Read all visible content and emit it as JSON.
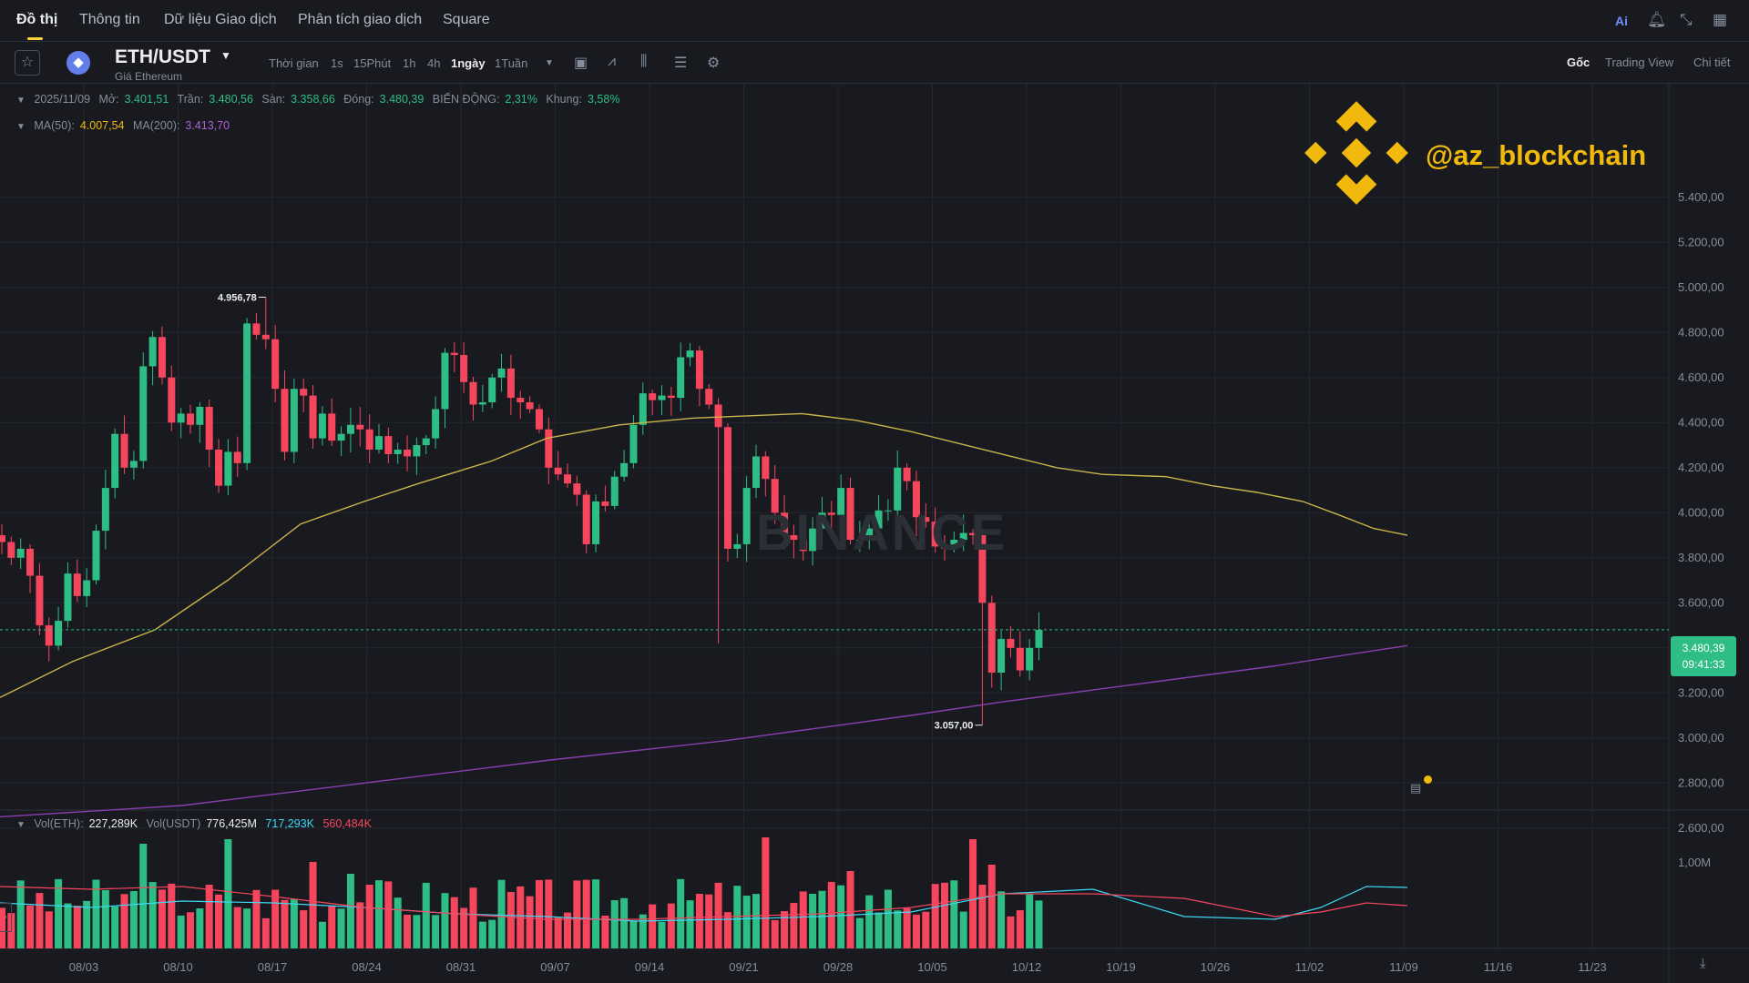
{
  "nav": {
    "tabs": [
      "Đồ thị",
      "Thông tin",
      "Dữ liệu Giao dịch",
      "Phân tích giao dịch",
      "Square"
    ],
    "ai_label": "Ai"
  },
  "toolbar": {
    "pair": "ETH/USDT",
    "subtitle": "Giá Ethereum",
    "time_label": "Thời gian",
    "timeframes": [
      "1s",
      "15Phút",
      "1h",
      "4h",
      "1ngày",
      "1Tuần"
    ],
    "active_timeframe": "1ngày",
    "views": [
      "Gốc",
      "Trading View",
      "Chi tiết"
    ],
    "active_view": "Gốc"
  },
  "ohlc": {
    "date": "2025/11/09",
    "open_label": "Mở:",
    "open": "3.401,51",
    "high_label": "Trần:",
    "high": "3.480,56",
    "low_label": "Sàn:",
    "low": "3.358,66",
    "close_label": "Đóng:",
    "close": "3.480,39",
    "change_label": "BIẾN ĐỘNG:",
    "change": "2,31%",
    "range_label": "Khung:",
    "range": "3,58%"
  },
  "ma": {
    "ma50_label": "MA(50):",
    "ma50": "4.007,54",
    "ma200_label": "MA(200):",
    "ma200": "3.413,70"
  },
  "volume": {
    "eth_label": "Vol(ETH):",
    "eth": "227,289K",
    "usdt_label": "Vol(USDT)",
    "usdt": "776,425M",
    "ma1": "717,293K",
    "ma2": "560,484K"
  },
  "brand": {
    "handle": "@az_blockchain",
    "watermark": "BINANCE"
  },
  "price_tag": {
    "price": "3.480,39",
    "countdown": "09:41:33"
  },
  "chart_data": {
    "type": "candlestick",
    "price_axis_ticks": [
      "5.400,00",
      "5.200,00",
      "5.000,00",
      "4.800,00",
      "4.600,00",
      "4.400,00",
      "4.200,00",
      "4.000,00",
      "3.800,00",
      "3.600,00",
      "3.200,00",
      "3.000,00",
      "2.800,00",
      "2.600,00"
    ],
    "volume_axis_ticks": [
      "1,00M"
    ],
    "date_ticks": [
      "08/03",
      "08/10",
      "08/17",
      "08/24",
      "08/31",
      "09/07",
      "09/14",
      "09/21",
      "09/28",
      "10/05",
      "10/12",
      "10/19",
      "10/26",
      "11/02",
      "11/09",
      "11/16",
      "11/23"
    ],
    "annotations": {
      "high_label": "4.956,78",
      "low_label": "3.057,00"
    },
    "last_price": 3480.39,
    "ylim": [
      2450,
      5520
    ],
    "first_date": "2025/07/31",
    "closes": [
      3870,
      3800,
      3840,
      3720,
      3500,
      3410,
      3520,
      3730,
      3630,
      3700,
      3920,
      4110,
      4350,
      4200,
      4230,
      4650,
      4780,
      4600,
      4400,
      4440,
      4390,
      4470,
      4280,
      4120,
      4270,
      4220,
      4840,
      4790,
      4770,
      4550,
      4270,
      4550,
      4520,
      4330,
      4440,
      4320,
      4350,
      4390,
      4370,
      4280,
      4340,
      4260,
      4280,
      4250,
      4300,
      4330,
      4460,
      4710,
      4700,
      4580,
      4480,
      4490,
      4600,
      4640,
      4510,
      4490,
      4460,
      4370,
      4200,
      4170,
      4130,
      4080,
      3860,
      4050,
      4030,
      4160,
      4220,
      4390,
      4530,
      4500,
      4520,
      4510,
      4690,
      4720,
      4550,
      4480,
      4380,
      3840,
      3860,
      4110,
      4250,
      4150,
      4000,
      3900,
      3880,
      3830,
      3930,
      4000,
      3990,
      4110,
      3880,
      3880,
      3930,
      4010,
      4010,
      4200,
      4140,
      3980,
      3960,
      3850,
      3840,
      3880,
      3910,
      3900,
      3600,
      3290,
      3440,
      3400,
      3300,
      3400,
      3480
    ]
  }
}
